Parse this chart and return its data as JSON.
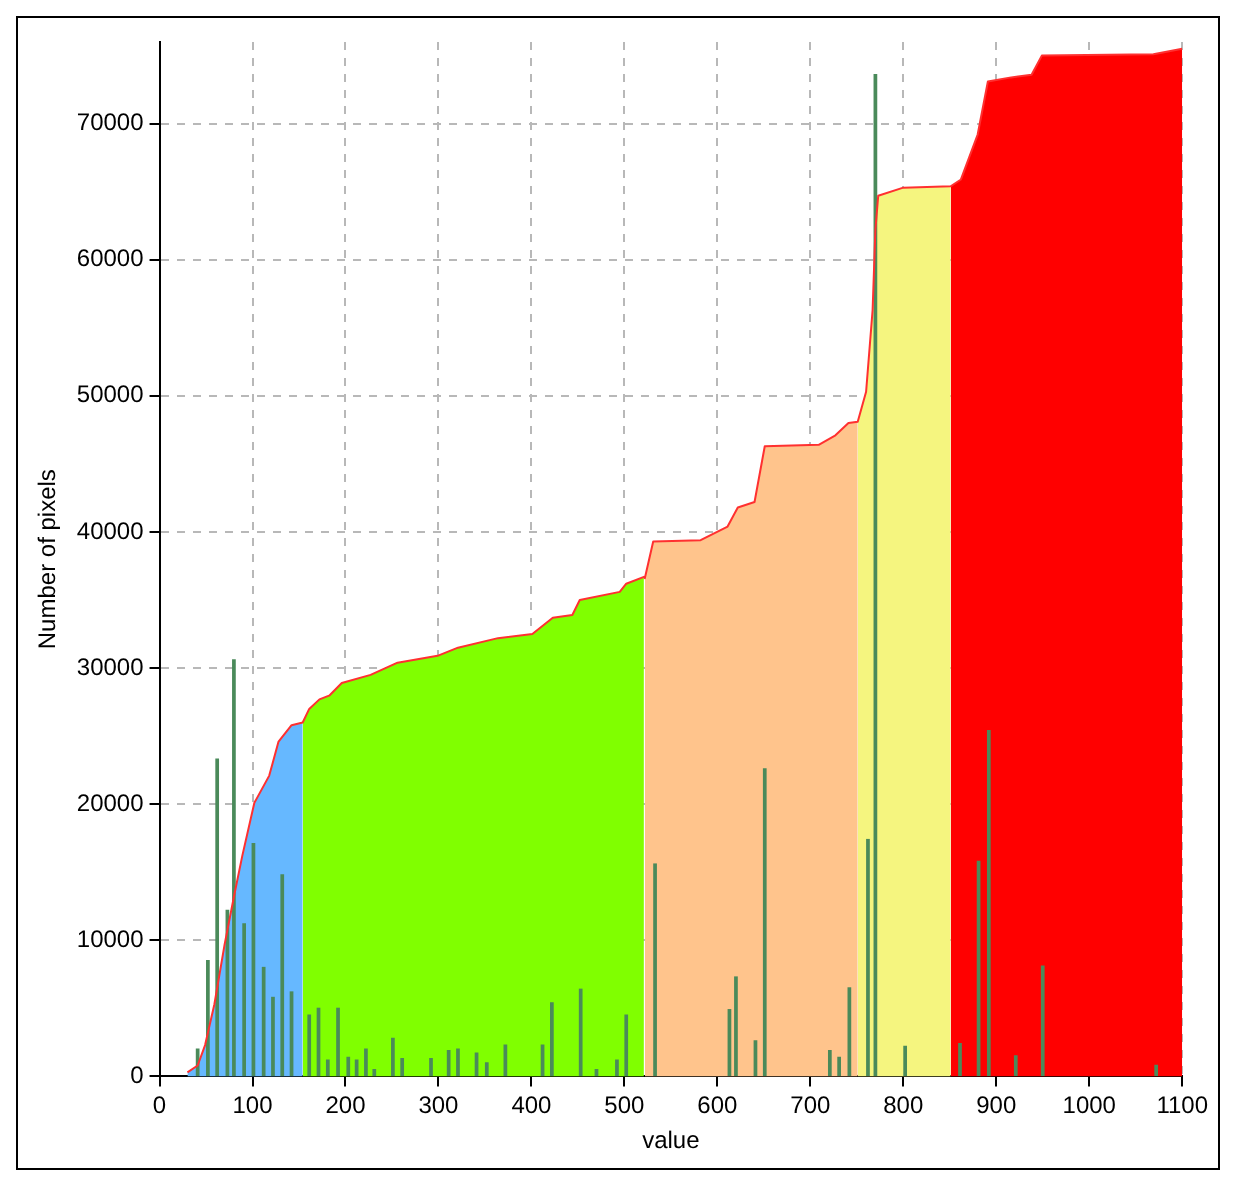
{
  "chart_data": {
    "type": "area",
    "xlabel": "value",
    "ylabel": "Number of pixels",
    "xlim": [
      0,
      1100
    ],
    "ylim": [
      0,
      76000
    ],
    "xticks": [
      0,
      100,
      200,
      300,
      400,
      500,
      600,
      700,
      800,
      900,
      1000,
      1100
    ],
    "yticks": [
      0,
      10000,
      20000,
      30000,
      40000,
      50000,
      60000,
      70000
    ],
    "grid": true,
    "legend": false,
    "series": [
      {
        "color": "#66b8ff",
        "x": [
          30,
          41,
          49,
          59,
          70,
          80,
          89,
          102,
          118,
          128,
          142,
          154
        ],
        "values": [
          300,
          800,
          2300,
          5300,
          9700,
          13200,
          16200,
          20100,
          22100,
          24600,
          25800,
          26000
        ]
      },
      {
        "color": "#80ff00",
        "x": [
          154,
          161,
          172,
          183,
          196,
          227,
          256,
          299,
          321,
          364,
          401,
          423,
          444,
          452,
          495,
          502,
          521
        ],
        "values": [
          26000,
          27000,
          27700,
          28000,
          28900,
          29500,
          30400,
          30900,
          31500,
          32200,
          32500,
          33700,
          33900,
          35000,
          35600,
          36200,
          36700
        ]
      },
      {
        "color": "#ffc48c",
        "x": [
          522,
          531,
          582,
          611,
          622,
          640,
          651,
          709,
          727,
          741,
          751
        ],
        "values": [
          36600,
          39300,
          39400,
          40400,
          41800,
          42200,
          46300,
          46400,
          47100,
          48000,
          48100
        ]
      },
      {
        "color": "#f5f57f",
        "x": [
          751,
          760,
          767,
          770,
          773,
          800,
          851
        ],
        "values": [
          48100,
          50300,
          56300,
          62200,
          64700,
          65300,
          65400
        ]
      },
      {
        "color": "#ff0000",
        "x": [
          851,
          862,
          880,
          891,
          916,
          938,
          949,
          1069,
          1100
        ],
        "values": [
          65400,
          65900,
          69200,
          73100,
          73400,
          73600,
          75000,
          75100,
          75500
        ]
      },
      {
        "type": "line",
        "color": "#ff3030",
        "x": [
          30,
          41,
          49,
          59,
          70,
          80,
          89,
          102,
          118,
          128,
          142,
          154,
          161,
          172,
          183,
          196,
          227,
          256,
          299,
          321,
          364,
          401,
          423,
          444,
          452,
          495,
          502,
          521,
          522,
          531,
          582,
          611,
          622,
          640,
          651,
          709,
          727,
          741,
          751,
          760,
          767,
          770,
          773,
          800,
          851,
          862,
          880,
          891,
          916,
          938,
          949,
          1069,
          1100
        ],
        "values": [
          300,
          800,
          2300,
          5300,
          9700,
          13200,
          16200,
          20100,
          22100,
          24600,
          25800,
          26000,
          27000,
          27700,
          28000,
          28900,
          29500,
          30400,
          30900,
          31500,
          32200,
          32500,
          33700,
          33900,
          35000,
          35600,
          36200,
          36700,
          36600,
          39300,
          39400,
          40400,
          41800,
          42200,
          46300,
          46400,
          47100,
          48000,
          48100,
          50300,
          56300,
          62200,
          64700,
          65300,
          65400,
          65900,
          69200,
          73100,
          73400,
          73600,
          75000,
          75100,
          75500
        ]
      },
      {
        "type": "bar",
        "color": "#4a8a5a",
        "x": [
          41,
          52,
          62,
          73,
          80,
          91,
          101,
          112,
          122,
          132,
          142,
          161,
          171,
          181,
          192,
          203,
          212,
          222,
          231,
          251,
          261,
          292,
          311,
          321,
          341,
          352,
          372,
          412,
          422,
          453,
          470,
          492,
          502,
          533,
          613,
          620,
          641,
          651,
          721,
          731,
          742,
          762,
          770,
          802,
          861,
          881,
          892,
          921,
          950,
          1072
        ],
        "values": [
          2000,
          8500,
          23300,
          12200,
          30600,
          11200,
          17100,
          8000,
          5800,
          14800,
          6200,
          4500,
          5000,
          1200,
          5000,
          1400,
          1200,
          2000,
          500,
          2800,
          1300,
          1300,
          1900,
          2000,
          1700,
          1000,
          2300,
          2300,
          5400,
          6400,
          500,
          1200,
          4500,
          15600,
          4900,
          7300,
          2600,
          22600,
          1900,
          1400,
          6500,
          17400,
          73600,
          2200,
          2400,
          15800,
          25400,
          1500,
          8100,
          800
        ]
      }
    ]
  }
}
